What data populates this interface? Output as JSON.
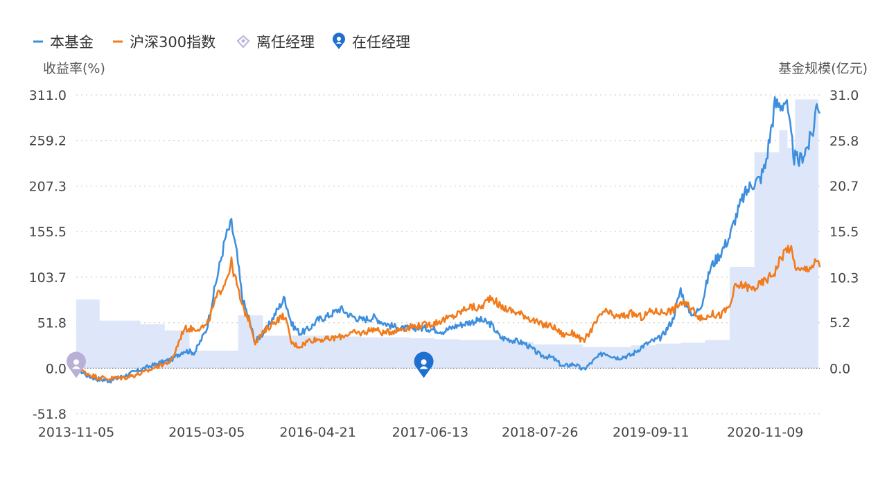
{
  "chart_data": {
    "type": "line",
    "legend": [
      {
        "label": "本基金",
        "color": "#3d8fde",
        "marker": "line"
      },
      {
        "label": "沪深300指数",
        "color": "#f27b1c",
        "marker": "line"
      },
      {
        "label": "离任经理",
        "color": "#b8b0d6",
        "marker": "diamond-pin"
      },
      {
        "label": "在任经理",
        "color": "#1f6fd1",
        "marker": "pin"
      }
    ],
    "legend_position": "top-left",
    "y_left": {
      "title": "收益率(%)",
      "min": -51.8,
      "max": 311.0,
      "ticks": [
        "311.0",
        "259.2",
        "207.3",
        "155.5",
        "103.7",
        "51.8",
        "0.0",
        "-51.8"
      ],
      "tick_values": [
        311.0,
        259.2,
        207.3,
        155.5,
        103.7,
        51.8,
        0.0,
        -51.8
      ]
    },
    "y_right": {
      "title": "基金规模(亿元)",
      "min": 0,
      "max": 31.0,
      "ticks": [
        "31.0",
        "25.8",
        "20.7",
        "15.5",
        "10.3",
        "5.2",
        "0.0"
      ],
      "tick_values": [
        31.0,
        25.8,
        20.7,
        15.5,
        10.3,
        5.2,
        0.0
      ]
    },
    "x_axis": {
      "ticks": [
        "2013-11-05",
        "2015-03-05",
        "2016-04-21",
        "2017-06-13",
        "2018-07-26",
        "2019-09-11",
        "2020-11-09"
      ],
      "range": [
        "2013-11-05",
        "2021-05-31"
      ]
    },
    "grid": "horizontal dotted",
    "series": [
      {
        "name": "本基金",
        "color": "#3d8fde",
        "points": [
          [
            "2013-11-05",
            0
          ],
          [
            "2013-12-15",
            -8
          ],
          [
            "2014-01-20",
            -12
          ],
          [
            "2014-03-10",
            -14
          ],
          [
            "2014-05-10",
            -8
          ],
          [
            "2014-07-15",
            0
          ],
          [
            "2014-09-01",
            5
          ],
          [
            "2014-10-25",
            10
          ],
          [
            "2014-12-10",
            20
          ],
          [
            "2015-01-20",
            18
          ],
          [
            "2015-03-05",
            45
          ],
          [
            "2015-04-10",
            100
          ],
          [
            "2015-05-15",
            150
          ],
          [
            "2015-06-05",
            165
          ],
          [
            "2015-06-25",
            130
          ],
          [
            "2015-07-15",
            80
          ],
          [
            "2015-08-10",
            55
          ],
          [
            "2015-09-01",
            30
          ],
          [
            "2015-10-15",
            45
          ],
          [
            "2015-11-20",
            65
          ],
          [
            "2015-12-20",
            80
          ],
          [
            "2016-01-15",
            50
          ],
          [
            "2016-02-15",
            40
          ],
          [
            "2016-03-20",
            45
          ],
          [
            "2016-04-21",
            55
          ],
          [
            "2016-06-01",
            60
          ],
          [
            "2016-07-15",
            68
          ],
          [
            "2016-08-20",
            60
          ],
          [
            "2016-10-01",
            55
          ],
          [
            "2016-11-15",
            58
          ],
          [
            "2016-12-20",
            52
          ],
          [
            "2017-01-20",
            48
          ],
          [
            "2017-03-01",
            45
          ],
          [
            "2017-04-15",
            46
          ],
          [
            "2017-06-13",
            45
          ],
          [
            "2017-08-01",
            42
          ],
          [
            "2017-09-15",
            48
          ],
          [
            "2017-11-01",
            52
          ],
          [
            "2017-12-15",
            55
          ],
          [
            "2018-01-25",
            50
          ],
          [
            "2018-03-01",
            35
          ],
          [
            "2018-04-15",
            32
          ],
          [
            "2018-06-01",
            28
          ],
          [
            "2018-07-26",
            15
          ],
          [
            "2018-09-10",
            12
          ],
          [
            "2018-10-20",
            2
          ],
          [
            "2018-11-30",
            5
          ],
          [
            "2019-01-03",
            -2
          ],
          [
            "2019-02-15",
            10
          ],
          [
            "2019-03-20",
            18
          ],
          [
            "2019-05-10",
            12
          ],
          [
            "2019-07-01",
            15
          ],
          [
            "2019-08-10",
            25
          ],
          [
            "2019-09-11",
            30
          ],
          [
            "2019-10-20",
            35
          ],
          [
            "2019-12-01",
            55
          ],
          [
            "2019-12-31",
            90
          ],
          [
            "2020-01-20",
            70
          ],
          [
            "2020-02-20",
            60
          ],
          [
            "2020-03-20",
            75
          ],
          [
            "2020-04-20",
            115
          ],
          [
            "2020-05-25",
            130
          ],
          [
            "2020-06-30",
            150
          ],
          [
            "2020-07-20",
            170
          ],
          [
            "2020-08-20",
            195
          ],
          [
            "2020-09-20",
            210
          ],
          [
            "2020-10-20",
            215
          ],
          [
            "2020-11-09",
            230
          ],
          [
            "2020-11-30",
            270
          ],
          [
            "2020-12-15",
            300
          ],
          [
            "2021-01-05",
            300
          ],
          [
            "2021-01-25",
            305
          ],
          [
            "2021-02-10",
            270
          ],
          [
            "2021-02-25",
            240
          ],
          [
            "2021-03-15",
            235
          ],
          [
            "2021-04-01",
            245
          ],
          [
            "2021-04-20",
            255
          ],
          [
            "2021-05-10",
            275
          ],
          [
            "2021-05-20",
            308
          ],
          [
            "2021-05-31",
            290
          ]
        ]
      },
      {
        "name": "沪深300指数",
        "color": "#f27b1c",
        "points": [
          [
            "2013-11-05",
            0
          ],
          [
            "2013-12-15",
            -6
          ],
          [
            "2014-01-20",
            -10
          ],
          [
            "2014-03-10",
            -12
          ],
          [
            "2014-05-10",
            -10
          ],
          [
            "2014-07-15",
            -5
          ],
          [
            "2014-09-01",
            2
          ],
          [
            "2014-10-25",
            8
          ],
          [
            "2014-12-10",
            45
          ],
          [
            "2015-01-20",
            45
          ],
          [
            "2015-03-05",
            48
          ],
          [
            "2015-04-10",
            80
          ],
          [
            "2015-05-15",
            100
          ],
          [
            "2015-06-05",
            120
          ],
          [
            "2015-06-25",
            95
          ],
          [
            "2015-07-15",
            70
          ],
          [
            "2015-08-10",
            55
          ],
          [
            "2015-09-01",
            30
          ],
          [
            "2015-10-15",
            45
          ],
          [
            "2015-11-20",
            55
          ],
          [
            "2015-12-20",
            60
          ],
          [
            "2016-01-15",
            28
          ],
          [
            "2016-02-15",
            25
          ],
          [
            "2016-03-20",
            32
          ],
          [
            "2016-04-21",
            33
          ],
          [
            "2016-06-01",
            33
          ],
          [
            "2016-07-15",
            36
          ],
          [
            "2016-08-20",
            40
          ],
          [
            "2016-10-01",
            40
          ],
          [
            "2016-11-15",
            45
          ],
          [
            "2016-12-20",
            40
          ],
          [
            "2017-01-20",
            42
          ],
          [
            "2017-03-01",
            45
          ],
          [
            "2017-04-15",
            48
          ],
          [
            "2017-06-13",
            50
          ],
          [
            "2017-08-01",
            55
          ],
          [
            "2017-09-15",
            60
          ],
          [
            "2017-11-01",
            70
          ],
          [
            "2017-12-15",
            68
          ],
          [
            "2018-01-25",
            82
          ],
          [
            "2018-03-01",
            70
          ],
          [
            "2018-04-15",
            65
          ],
          [
            "2018-06-01",
            60
          ],
          [
            "2018-07-26",
            50
          ],
          [
            "2018-09-10",
            48
          ],
          [
            "2018-10-20",
            38
          ],
          [
            "2018-11-30",
            40
          ],
          [
            "2019-01-03",
            30
          ],
          [
            "2019-02-15",
            50
          ],
          [
            "2019-03-20",
            65
          ],
          [
            "2019-05-10",
            58
          ],
          [
            "2019-07-01",
            62
          ],
          [
            "2019-08-10",
            58
          ],
          [
            "2019-09-11",
            65
          ],
          [
            "2019-10-20",
            64
          ],
          [
            "2019-12-01",
            66
          ],
          [
            "2019-12-31",
            75
          ],
          [
            "2020-01-20",
            72
          ],
          [
            "2020-02-20",
            65
          ],
          [
            "2020-03-20",
            55
          ],
          [
            "2020-04-20",
            62
          ],
          [
            "2020-05-25",
            60
          ],
          [
            "2020-06-30",
            70
          ],
          [
            "2020-07-20",
            92
          ],
          [
            "2020-08-20",
            95
          ],
          [
            "2020-09-20",
            90
          ],
          [
            "2020-10-20",
            95
          ],
          [
            "2020-11-09",
            100
          ],
          [
            "2020-11-30",
            105
          ],
          [
            "2020-12-15",
            110
          ],
          [
            "2021-01-05",
            125
          ],
          [
            "2021-01-25",
            135
          ],
          [
            "2021-02-10",
            138
          ],
          [
            "2021-02-25",
            120
          ],
          [
            "2021-03-15",
            110
          ],
          [
            "2021-04-01",
            112
          ],
          [
            "2021-04-20",
            115
          ],
          [
            "2021-05-10",
            118
          ],
          [
            "2021-05-20",
            122
          ],
          [
            "2021-05-31",
            115
          ]
        ]
      }
    ],
    "fund_size_area": {
      "color": "#dbe6f9",
      "axis": "right",
      "steps": [
        [
          "2013-11-05",
          7.8
        ],
        [
          "2014-01-31",
          5.4
        ],
        [
          "2014-06-30",
          5.0
        ],
        [
          "2014-09-30",
          4.3
        ],
        [
          "2014-12-31",
          2.0
        ],
        [
          "2015-06-30",
          6.0
        ],
        [
          "2015-09-30",
          3.7
        ],
        [
          "2016-06-30",
          3.6
        ],
        [
          "2016-09-30",
          3.5
        ],
        [
          "2017-03-31",
          3.4
        ],
        [
          "2017-06-30",
          3.3
        ],
        [
          "2017-09-30",
          3.2
        ],
        [
          "2018-03-31",
          3.0
        ],
        [
          "2018-06-30",
          2.7
        ],
        [
          "2018-12-31",
          2.4
        ],
        [
          "2019-06-30",
          2.6
        ],
        [
          "2019-09-30",
          2.8
        ],
        [
          "2019-12-31",
          2.9
        ],
        [
          "2020-03-31",
          3.2
        ],
        [
          "2020-06-30",
          11.5
        ],
        [
          "2020-09-30",
          24.5
        ],
        [
          "2020-12-31",
          27.0
        ],
        [
          "2021-01-31",
          25.0
        ],
        [
          "2021-02-28",
          30.5
        ]
      ]
    },
    "manager_markers": [
      {
        "date": "2013-11-05",
        "value": 0.0,
        "type": "离任经理",
        "color": "#b8b0d6"
      },
      {
        "date": "2017-05-20",
        "value": 0.0,
        "type": "在任经理",
        "color": "#1f6fd1"
      }
    ]
  }
}
